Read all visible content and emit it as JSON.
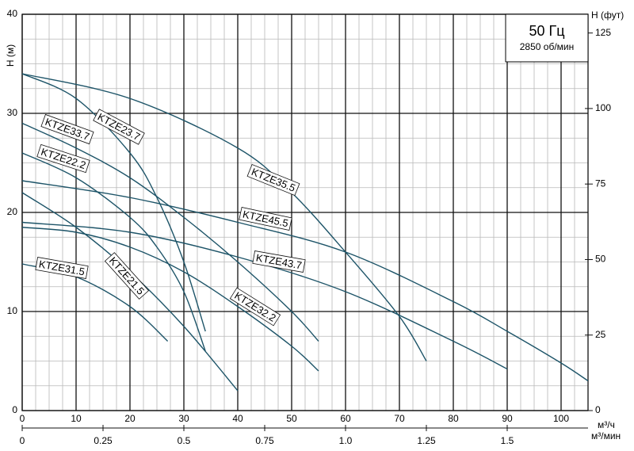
{
  "chart_data": {
    "type": "line",
    "y_label": "H (м)",
    "y2_label": "H (фут)",
    "x_unit": "м³/ч",
    "x2_unit": "м³/мин",
    "box_title": "50 Гц",
    "box_subtitle": "2850 об/мин",
    "xlim": [
      0,
      105
    ],
    "xticks": [
      0,
      10,
      20,
      30,
      40,
      50,
      60,
      70,
      80,
      90,
      100
    ],
    "ylim": [
      0,
      40
    ],
    "yticks": [
      0,
      10,
      20,
      30,
      40
    ],
    "y2lim": [
      0,
      131.2
    ],
    "y2ticks": [
      0,
      25,
      50,
      75,
      100,
      125
    ],
    "x2lim": [
      0,
      1.75
    ],
    "x2ticks": [
      0,
      0.25,
      0.5,
      0.75,
      {
        "value": 1,
        "label": "1.0"
      },
      1.25,
      1.5
    ],
    "grid": true,
    "color": "#1d5468",
    "series": [
      {
        "name": "KTZE23.7",
        "x": [
          0,
          10,
          20,
          25,
          30,
          34
        ],
        "values": [
          34,
          31.5,
          26,
          21.5,
          15,
          8
        ]
      },
      {
        "name": "KTZE33.7",
        "x": [
          0,
          10,
          20,
          30,
          40,
          50,
          55
        ],
        "values": [
          29,
          26.5,
          23.5,
          19.5,
          15,
          10,
          7
        ]
      },
      {
        "name": "KTZE22.2",
        "x": [
          0,
          10,
          20,
          25,
          30,
          34
        ],
        "values": [
          26,
          23.5,
          19.5,
          16.5,
          12,
          6
        ]
      },
      {
        "name": "KTZE35.5",
        "x": [
          0,
          20,
          40,
          50,
          60,
          70,
          75
        ],
        "values": [
          34,
          31.5,
          26.5,
          22,
          16,
          9.5,
          5
        ]
      },
      {
        "name": "KTZE45.5",
        "x": [
          0,
          20,
          40,
          60,
          80,
          90,
          100,
          105
        ],
        "values": [
          23.2,
          21.5,
          19,
          16,
          11,
          8,
          4.8,
          3
        ]
      },
      {
        "name": "KTZE43.7",
        "x": [
          0,
          20,
          40,
          60,
          80,
          90
        ],
        "values": [
          19,
          18,
          15.5,
          12,
          7,
          4.2
        ]
      },
      {
        "name": "KTZE32.2",
        "x": [
          0,
          10,
          20,
          30,
          40,
          50,
          55
        ],
        "values": [
          18.5,
          18,
          16.5,
          14,
          10.5,
          6.5,
          4
        ]
      },
      {
        "name": "KTZE21.5",
        "x": [
          0,
          10,
          20,
          30,
          40
        ],
        "values": [
          22,
          18.5,
          14,
          8.5,
          2
        ]
      },
      {
        "name": "KTZE31.5",
        "x": [
          0,
          10,
          20,
          27
        ],
        "values": [
          14.8,
          13.5,
          10.5,
          7
        ]
      }
    ]
  }
}
